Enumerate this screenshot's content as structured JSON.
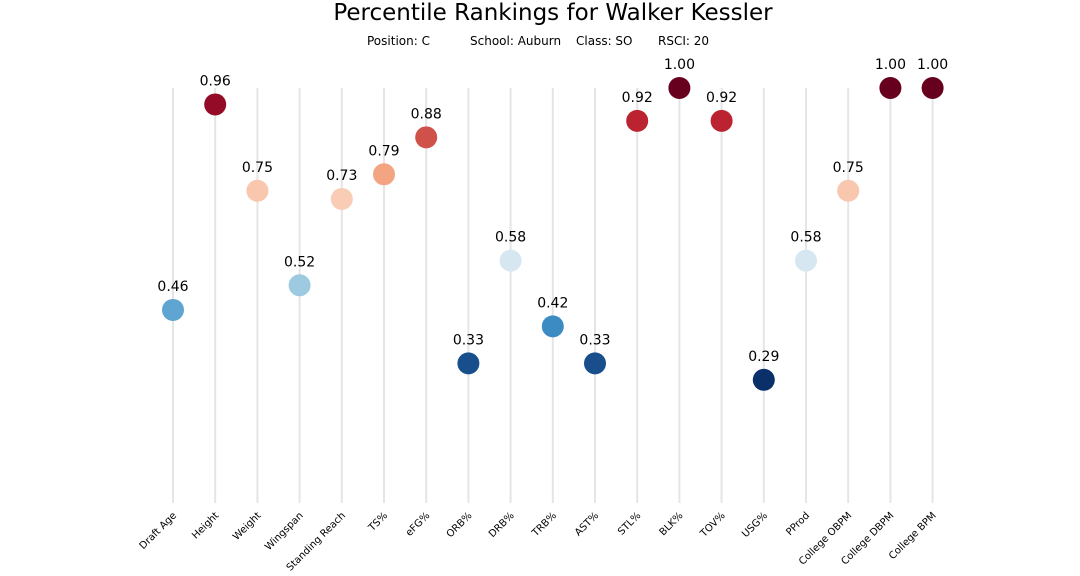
{
  "chart_data": {
    "type": "scatter",
    "title": "Percentile Rankings for Walker Kessler",
    "subtitle": {
      "position": "Position: C",
      "school": "School: Auburn",
      "class": "Class: SO",
      "rsci": "RSCI: 20"
    },
    "ylim": [
      0,
      1
    ],
    "grid": false,
    "colormap": "RdBu_r",
    "categories": [
      "Draft Age",
      "Height",
      "Weight",
      "Wingspan",
      "Standing Reach",
      "TS%",
      "eFG%",
      "ORB%",
      "DRB%",
      "TRB%",
      "AST%",
      "STL%",
      "BLK%",
      "TOV%",
      "USG%",
      "PProd",
      "College OBPM",
      "College DBPM",
      "College BPM"
    ],
    "values": [
      0.46,
      0.96,
      0.75,
      0.52,
      0.73,
      0.79,
      0.88,
      0.33,
      0.58,
      0.42,
      0.33,
      0.92,
      1.0,
      0.92,
      0.29,
      0.58,
      0.75,
      1.0,
      1.0
    ],
    "labels": [
      "0.46",
      "0.96",
      "0.75",
      "0.52",
      "0.73",
      "0.79",
      "0.88",
      "0.33",
      "0.58",
      "0.42",
      "0.33",
      "0.92",
      "1.00",
      "0.92",
      "0.29",
      "0.58",
      "0.75",
      "1.00",
      "1.00"
    ],
    "colors": [
      "#5fa5d1",
      "#940b27",
      "#f9c7ad",
      "#9dcae1",
      "#f9cdb5",
      "#f3a582",
      "#d0504a",
      "#174e8b",
      "#d6e7f1",
      "#3c8bc3",
      "#174e8b",
      "#bc2330",
      "#67001f",
      "#bc2330",
      "#0a3069",
      "#d6e7f1",
      "#f9c7ad",
      "#67001f",
      "#67001f"
    ]
  }
}
